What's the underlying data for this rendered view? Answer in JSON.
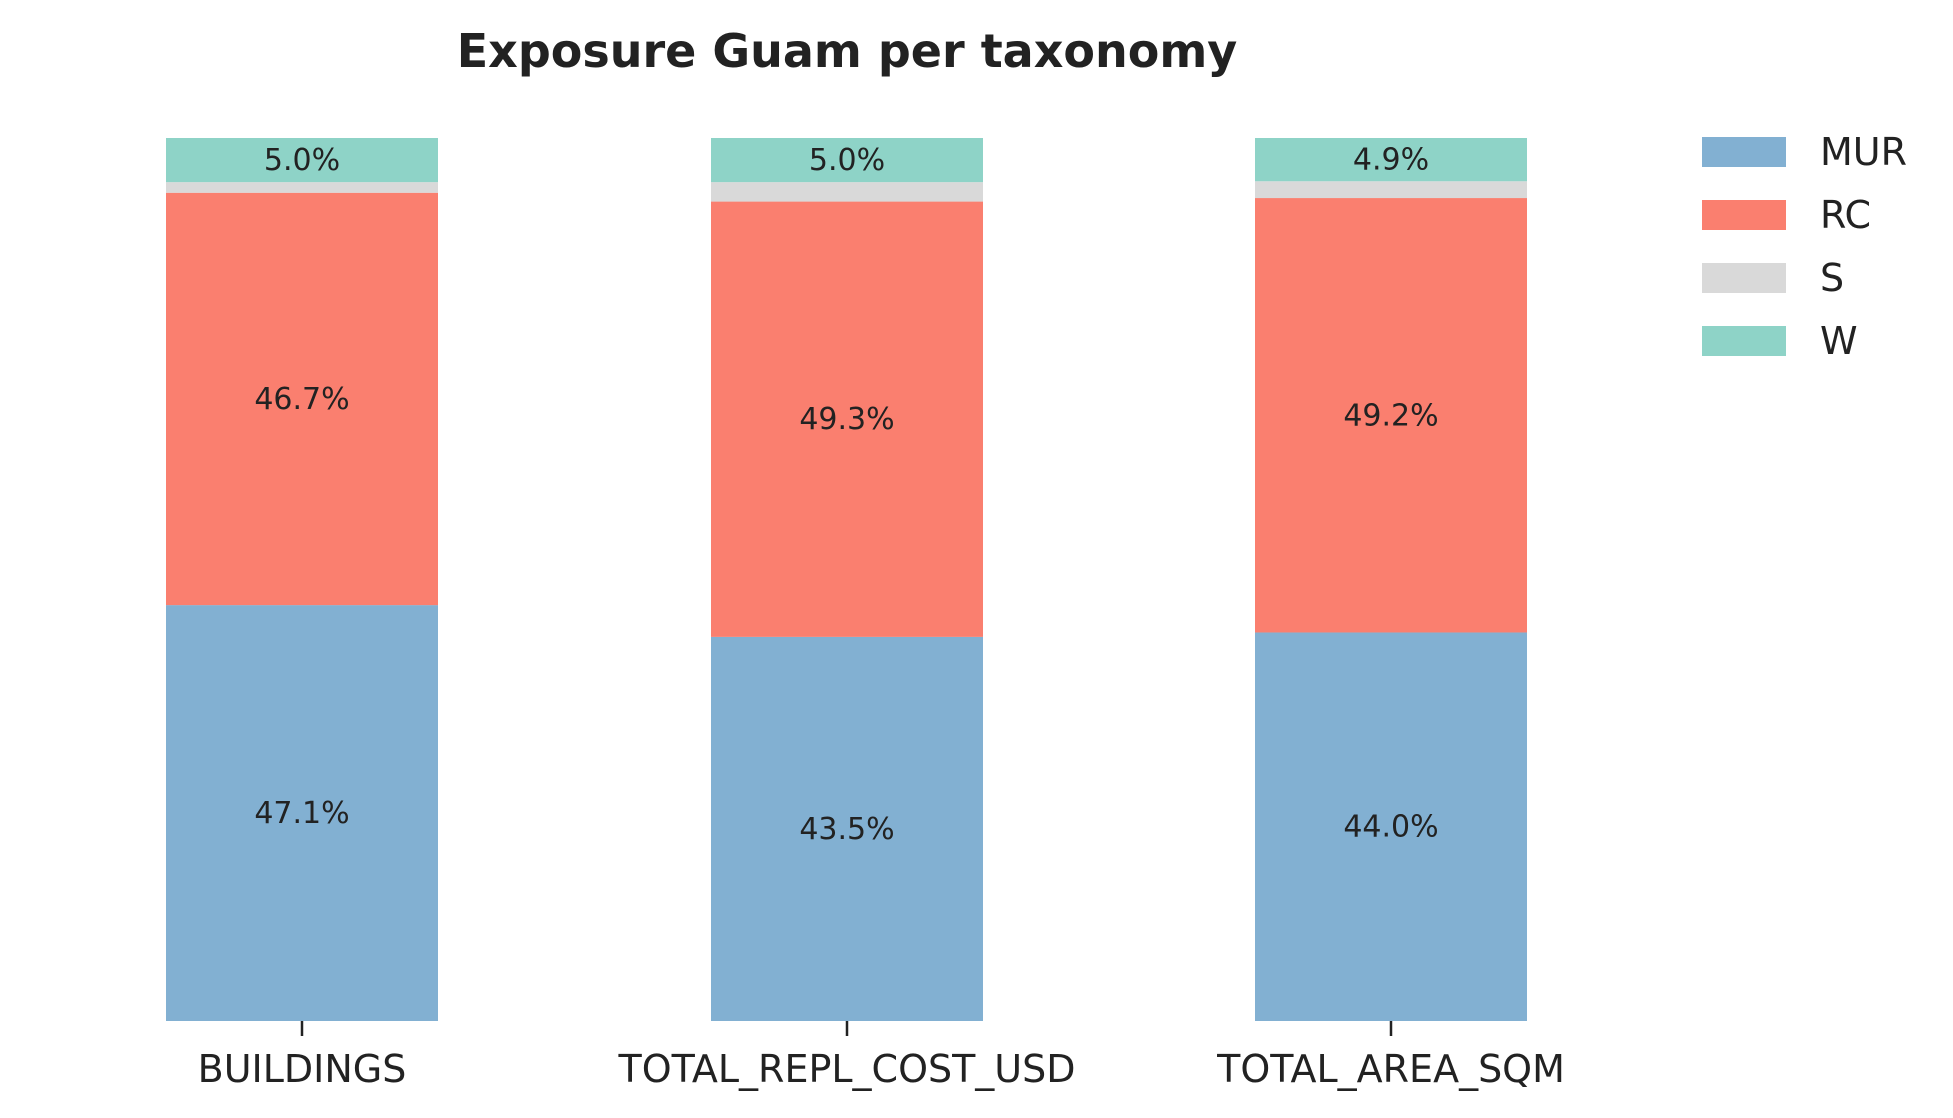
{
  "chart_data": {
    "type": "bar",
    "stacked": true,
    "title": "Exposure Guam per taxonomy",
    "xlabel": "",
    "ylabel": "",
    "ylim": [
      0,
      100
    ],
    "categories": [
      "BUILDINGS",
      "TOTAL_REPL_COST_USD",
      "TOTAL_AREA_SQM"
    ],
    "series": [
      {
        "name": "MUR",
        "color": "#82b0d2",
        "values": [
          47.1,
          43.5,
          44.0
        ],
        "labels": [
          "47.1%",
          "43.5%",
          "44.0%"
        ]
      },
      {
        "name": "RC",
        "color": "#fa7f6f",
        "values": [
          46.7,
          49.3,
          49.2
        ],
        "labels": [
          "46.7%",
          "49.3%",
          "49.2%"
        ]
      },
      {
        "name": "S",
        "color": "#d9d9d9",
        "values": [
          1.2,
          2.2,
          1.9
        ],
        "labels": [
          "",
          "",
          ""
        ]
      },
      {
        "name": "W",
        "color": "#8ed3c7",
        "values": [
          5.0,
          5.0,
          4.9
        ],
        "labels": [
          "5.0%",
          "5.0%",
          "4.9%"
        ]
      }
    ],
    "legend": {
      "position": "outside-top-right"
    },
    "grid": false
  }
}
